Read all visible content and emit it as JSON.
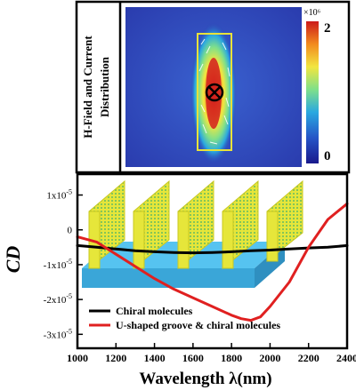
{
  "colors": {
    "colormap": [
      "#1a1a8c",
      "#2554c7",
      "#2aa8e0",
      "#7fe08a",
      "#f2e640",
      "#f28a1e",
      "#cc1a1a"
    ],
    "field_background": "#2a3fb0",
    "groove_outline": "#e8e23a",
    "chiral_line": "#000000",
    "u_groove_line": "#e02020",
    "slab_color": "#56c3f0",
    "fin_color": "#e6e63a",
    "fin_dots": "#3fae6e"
  },
  "inset_panel": {
    "label_line1": "H-Field and Current",
    "label_line2": "Distribution",
    "colorbar_max": "2",
    "colorbar_min": "0",
    "colorbar_scale": "×10⁶",
    "icons": [
      "current-into-page-icon"
    ]
  },
  "chart_data": {
    "type": "line",
    "xlabel": "Wavelength λ(nm)",
    "ylabel": "CD",
    "xlim": [
      1000,
      2400
    ],
    "ylim": [
      -3.4e-05,
      1.6e-05
    ],
    "x_ticks": [
      1000,
      1200,
      1400,
      1600,
      1800,
      2000,
      2200,
      2400
    ],
    "y_ticks": [
      1e-05,
      0,
      -1e-05,
      -2e-05,
      -3e-05
    ],
    "x_tick_labels": [
      "1000",
      "1200",
      "1400",
      "1600",
      "1800",
      "2000",
      "2200",
      "2400"
    ],
    "y_tick_labels": [
      {
        "mant": "1x10",
        "exp": "-5"
      },
      {
        "mant": "0",
        "exp": ""
      },
      {
        "mant": "-1x10",
        "exp": "-5"
      },
      {
        "mant": "-2x10",
        "exp": "-5"
      },
      {
        "mant": "-3x10",
        "exp": "-5"
      }
    ],
    "grid": false,
    "legend_position": "bottom-left",
    "series": [
      {
        "name": "Chiral molecules",
        "color": "#000000",
        "x": [
          1000,
          1100,
          1200,
          1300,
          1400,
          1500,
          1600,
          1700,
          1800,
          1900,
          2000,
          2100,
          2200,
          2300,
          2400
        ],
        "y": [
          -4.5e-06,
          -5e-06,
          -5.5e-06,
          -6e-06,
          -6.3e-06,
          -6.5e-06,
          -6.6e-06,
          -6.5e-06,
          -6.3e-06,
          -6e-06,
          -5.8e-06,
          -5.5e-06,
          -5.2e-06,
          -5e-06,
          -4.5e-06
        ]
      },
      {
        "name": "U-shaped groove & chiral molecules",
        "color": "#e02020",
        "x": [
          1000,
          1100,
          1200,
          1300,
          1400,
          1500,
          1600,
          1700,
          1800,
          1850,
          1900,
          1950,
          2000,
          2100,
          2200,
          2300,
          2400
        ],
        "y": [
          -2e-06,
          -3.5e-06,
          -7e-06,
          -1.05e-05,
          -1.4e-05,
          -1.7e-05,
          -1.95e-05,
          -2.2e-05,
          -2.45e-05,
          -2.55e-05,
          -2.6e-05,
          -2.5e-05,
          -2.2e-05,
          -1.5e-05,
          -5e-06,
          3e-06,
          7.5e-06
        ]
      }
    ]
  }
}
